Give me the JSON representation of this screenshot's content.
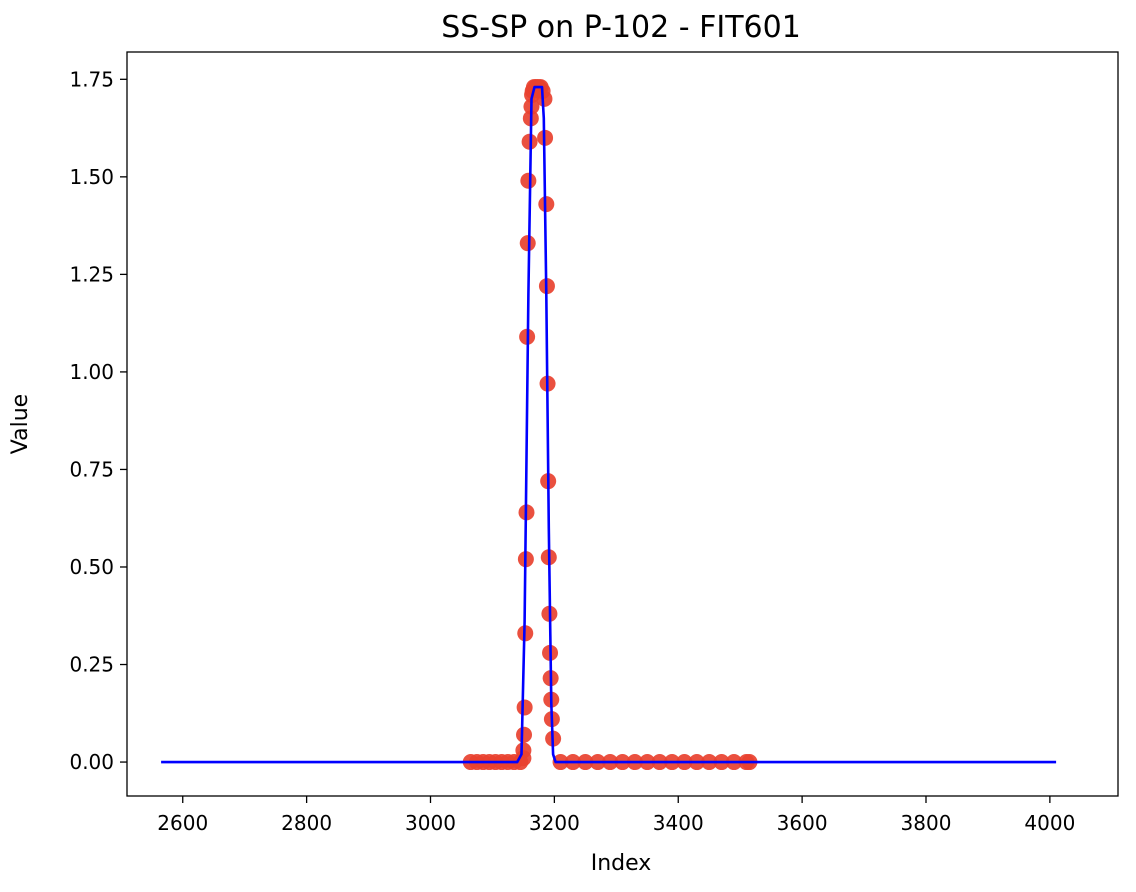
{
  "chart_data": {
    "type": "scatter",
    "title": "SS-SP on P-102  -  FIT601",
    "xlabel": "Index",
    "ylabel": "Value",
    "xlim": [
      2510,
      4110
    ],
    "ylim": [
      -0.087,
      1.82
    ],
    "xticks": [
      2600,
      2800,
      3000,
      3200,
      3400,
      3600,
      3800,
      4000
    ],
    "xtick_labels": [
      "2600",
      "2800",
      "3000",
      "3200",
      "3400",
      "3600",
      "3800",
      "4000"
    ],
    "yticks": [
      0.0,
      0.25,
      0.5,
      0.75,
      1.0,
      1.25,
      1.5,
      1.75
    ],
    "ytick_labels": [
      "0.00",
      "0.25",
      "0.50",
      "0.75",
      "1.00",
      "1.25",
      "1.50",
      "1.75"
    ],
    "grid": false,
    "series": [
      {
        "kind": "scatter",
        "color": "#e8412f",
        "x": [
          3065,
          3075,
          3085,
          3095,
          3105,
          3115,
          3125,
          3135,
          3145,
          3150,
          3150,
          3151,
          3152,
          3153,
          3154,
          3155,
          3156,
          3157,
          3158,
          3160,
          3162,
          3163,
          3164,
          3165,
          3167,
          3170,
          3172,
          3175,
          3178,
          3181,
          3184,
          3185,
          3187,
          3188,
          3189,
          3190,
          3191,
          3192,
          3193,
          3194,
          3195,
          3196,
          3198,
          3210,
          3230,
          3250,
          3270,
          3290,
          3310,
          3330,
          3350,
          3370,
          3390,
          3410,
          3430,
          3450,
          3470,
          3490,
          3510,
          3515
        ],
        "y": [
          0.0,
          0.0,
          0.0,
          0.0,
          0.0,
          0.0,
          0.0,
          0.0,
          0.0,
          0.01,
          0.03,
          0.07,
          0.14,
          0.33,
          0.52,
          0.64,
          1.09,
          1.33,
          1.49,
          1.59,
          1.65,
          1.68,
          1.71,
          1.72,
          1.73,
          1.73,
          1.73,
          1.73,
          1.73,
          1.72,
          1.7,
          1.6,
          1.43,
          1.22,
          0.97,
          0.72,
          0.525,
          0.38,
          0.28,
          0.215,
          0.16,
          0.11,
          0.06,
          0.0,
          0.0,
          0.0,
          0.0,
          0.0,
          0.0,
          0.0,
          0.0,
          0.0,
          0.0,
          0.0,
          0.0,
          0.0,
          0.0,
          0.0,
          0.0,
          0.0
        ]
      },
      {
        "kind": "line",
        "color": "#0000ff",
        "x": [
          2565,
          3140,
          3147,
          3152,
          3158,
          3163,
          3168,
          3172,
          3176,
          3180,
          3183,
          3187,
          3191,
          3195,
          3198,
          3202,
          4010
        ],
        "y": [
          0.0,
          0.0,
          0.02,
          0.36,
          1.2,
          1.7,
          1.73,
          1.73,
          1.73,
          1.73,
          1.65,
          1.2,
          0.6,
          0.15,
          0.02,
          0.0,
          0.0
        ]
      }
    ]
  }
}
